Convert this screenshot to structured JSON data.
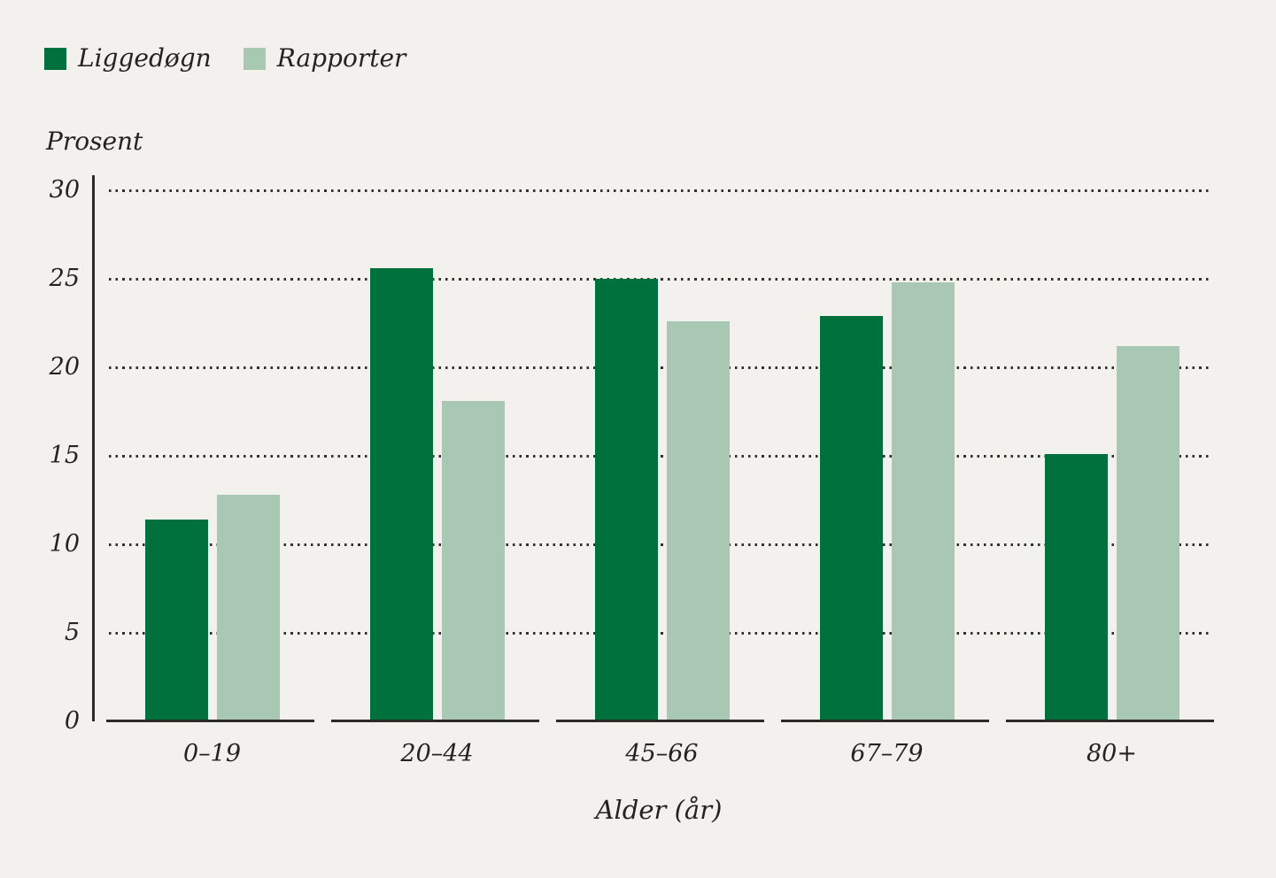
{
  "page_background": "#f2f1ed",
  "text_color": "#25221f",
  "axis_color": "#2b2a27",
  "legend": {
    "items": [
      {
        "label": "Liggedøgn",
        "color": "#00703d"
      },
      {
        "label": "Rapporter",
        "color": "#a9c8b4"
      }
    ]
  },
  "chart_data": {
    "type": "bar",
    "title": "",
    "ylabel": "Prosent",
    "xlabel": "Alder (år)",
    "categories": [
      "0–19",
      "20–44",
      "45–66",
      "67–79",
      "80+"
    ],
    "series": [
      {
        "name": "Liggedøgn",
        "color": "#00703d",
        "values": [
          11.4,
          25.6,
          25.0,
          22.9,
          15.1
        ]
      },
      {
        "name": "Rapporter",
        "color": "#a9c8b4",
        "values": [
          12.8,
          18.1,
          22.6,
          24.8,
          21.2
        ]
      }
    ],
    "ylim": [
      0,
      30
    ],
    "yticks": [
      0,
      5,
      10,
      15,
      20,
      25,
      30
    ],
    "grid": "horizontal-dotted",
    "legend_position": "top-left"
  }
}
